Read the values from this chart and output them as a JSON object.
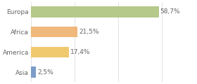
{
  "categories": [
    "Asia",
    "America",
    "Africa",
    "Europa"
  ],
  "values": [
    2.5,
    17.4,
    21.5,
    58.7
  ],
  "labels": [
    "2,5%",
    "17,4%",
    "21,5%",
    "58,7%"
  ],
  "bar_colors": [
    "#7b9cc9",
    "#f0c96e",
    "#f0b87a",
    "#b5c98a"
  ],
  "background_color": "#ffffff",
  "xlim": [
    0,
    75
  ],
  "label_fontsize": 6.5,
  "tick_fontsize": 6.5,
  "text_color": "#666666",
  "grid_color": "#dddddd",
  "bar_height": 0.55
}
